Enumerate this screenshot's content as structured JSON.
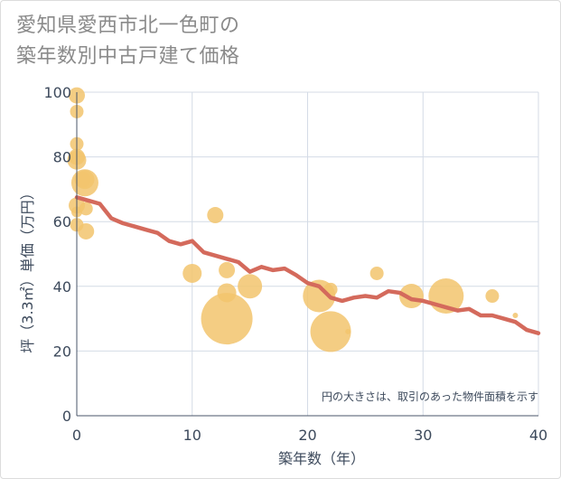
{
  "title": {
    "line1": "愛知県愛西市北一色町の",
    "line2": "築年数別中古戸建て価格"
  },
  "chart_data": {
    "type": "scatter",
    "title": "愛知県愛西市北一色町の築年数別中古戸建て価格",
    "xlabel": "築年数（年）",
    "ylabel": "坪（3.3㎡）単価（万円）",
    "xlim": [
      0,
      40
    ],
    "ylim": [
      0,
      100
    ],
    "x_ticks": [
      "0",
      "10",
      "20",
      "30",
      "40"
    ],
    "y_ticks": [
      "0",
      "20",
      "40",
      "60",
      "80",
      "100"
    ],
    "grid": true,
    "note": "円の大きさは、取引のあった物件面積を示す",
    "colors": {
      "bubble": "#f2c46d",
      "trend": "#d46a5c",
      "grid": "#d4dbe6"
    },
    "series": [
      {
        "type": "bubble",
        "points": [
          {
            "x": 0,
            "y": 99,
            "size": 5
          },
          {
            "x": 0,
            "y": 94,
            "size": 4
          },
          {
            "x": 0,
            "y": 84,
            "size": 4
          },
          {
            "x": 0,
            "y": 80,
            "size": 5
          },
          {
            "x": 0,
            "y": 79,
            "size": 6
          },
          {
            "x": 0,
            "y": 65,
            "size": 5
          },
          {
            "x": 0,
            "y": 63,
            "size": 3
          },
          {
            "x": 0,
            "y": 59,
            "size": 4
          },
          {
            "x": 0.5,
            "y": 73,
            "size": 5
          },
          {
            "x": 0.7,
            "y": 72,
            "size": 9
          },
          {
            "x": 0.7,
            "y": 73,
            "size": 6
          },
          {
            "x": 0.8,
            "y": 64,
            "size": 4
          },
          {
            "x": 0.8,
            "y": 57,
            "size": 5
          },
          {
            "x": 12,
            "y": 62,
            "size": 5
          },
          {
            "x": 10,
            "y": 44,
            "size": 6
          },
          {
            "x": 13,
            "y": 45,
            "size": 5
          },
          {
            "x": 13,
            "y": 38,
            "size": 6
          },
          {
            "x": 13,
            "y": 30,
            "size": 18
          },
          {
            "x": 15,
            "y": 40,
            "size": 8
          },
          {
            "x": 21,
            "y": 37,
            "size": 11
          },
          {
            "x": 22,
            "y": 39,
            "size": 4
          },
          {
            "x": 22,
            "y": 26,
            "size": 14
          },
          {
            "x": 23.5,
            "y": 26,
            "size": 1
          },
          {
            "x": 26,
            "y": 44,
            "size": 4
          },
          {
            "x": 29,
            "y": 37,
            "size": 8
          },
          {
            "x": 32,
            "y": 37,
            "size": 12
          },
          {
            "x": 36,
            "y": 37,
            "size": 4
          },
          {
            "x": 38,
            "y": 31,
            "size": 1
          }
        ]
      },
      {
        "type": "line",
        "x": [
          0,
          1,
          2,
          3,
          4,
          5,
          6,
          7,
          8,
          9,
          10,
          11,
          12,
          13,
          14,
          15,
          16,
          17,
          18,
          19,
          20,
          21,
          22,
          23,
          24,
          25,
          26,
          27,
          28,
          29,
          30,
          31,
          32,
          33,
          34,
          35,
          36,
          37,
          38,
          39,
          40
        ],
        "y": [
          67.5,
          66.5,
          65.5,
          61,
          59.5,
          58.5,
          57.5,
          56.5,
          54,
          53,
          54,
          50.5,
          49.5,
          48.5,
          47.5,
          44.5,
          46,
          45,
          45.5,
          43.5,
          41,
          40,
          36.5,
          35.5,
          36.5,
          37,
          36.5,
          38.5,
          38,
          36,
          35.5,
          34.5,
          33.5,
          32.5,
          33,
          31,
          31,
          30,
          29,
          26.5,
          25.5
        ]
      }
    ]
  }
}
